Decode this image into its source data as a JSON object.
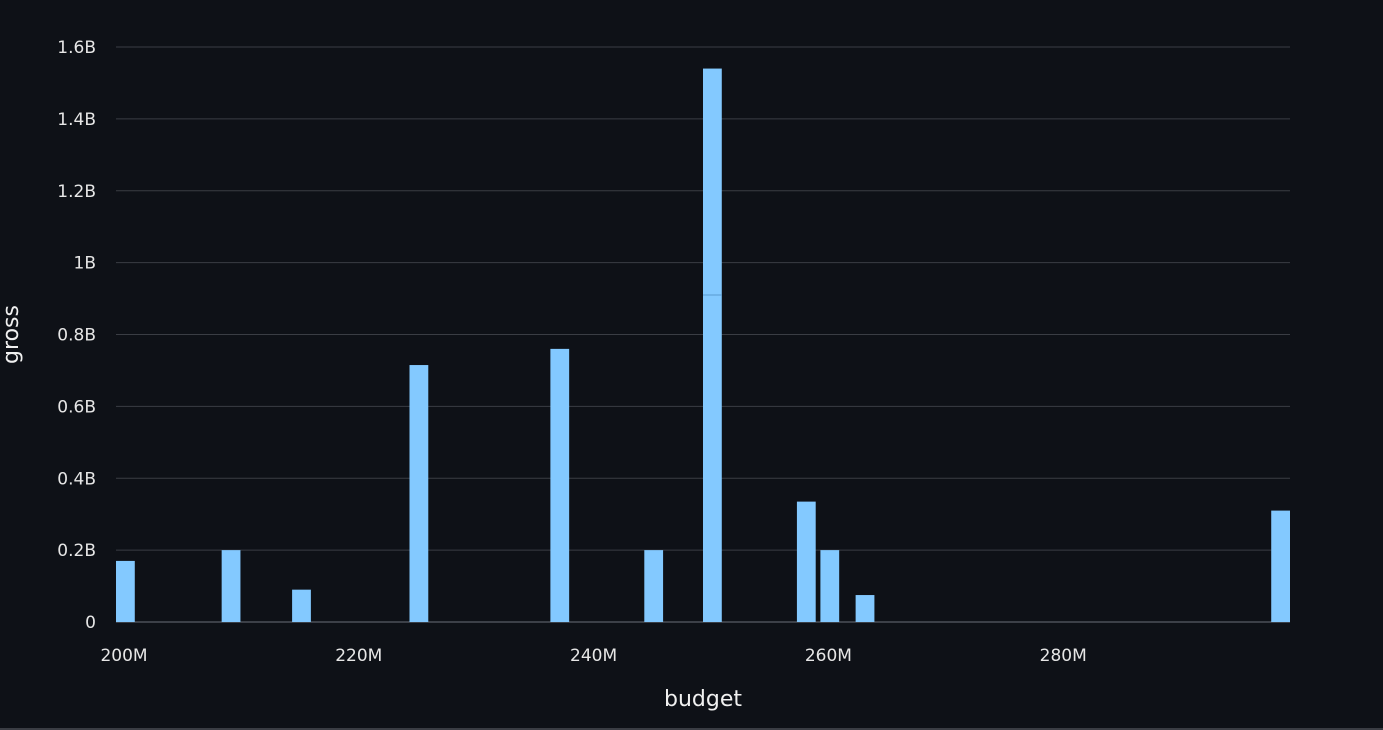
{
  "chart_data": {
    "type": "bar",
    "xlabel": "budget",
    "ylabel": "gross",
    "xlim": [
      200000000,
      300000000
    ],
    "ylim": [
      0,
      1600000000
    ],
    "x_ticks": [
      {
        "value": 200000000,
        "label": "200M"
      },
      {
        "value": 220000000,
        "label": "220M"
      },
      {
        "value": 240000000,
        "label": "240M"
      },
      {
        "value": 260000000,
        "label": "260M"
      },
      {
        "value": 280000000,
        "label": "280M"
      }
    ],
    "y_ticks": [
      {
        "value": 0,
        "label": "0"
      },
      {
        "value": 200000000,
        "label": "0.2B"
      },
      {
        "value": 400000000,
        "label": "0.4B"
      },
      {
        "value": 600000000,
        "label": "0.6B"
      },
      {
        "value": 800000000,
        "label": "0.8B"
      },
      {
        "value": 1000000000,
        "label": "1B"
      },
      {
        "value": 1200000000,
        "label": "1.2B"
      },
      {
        "value": 1400000000,
        "label": "1.4B"
      },
      {
        "value": 1600000000,
        "label": "1.6B"
      }
    ],
    "grid": true,
    "bar_width_budget": 1600000,
    "bar_color": "#83c9ff",
    "background": "#0e1117",
    "series": [
      {
        "values": [
          {
            "x": 200000000,
            "y": 170000000
          },
          {
            "x": 209000000,
            "y": 200000000
          },
          {
            "x": 215000000,
            "y": 90000000
          },
          {
            "x": 225000000,
            "y": 715000000
          },
          {
            "x": 237000000,
            "y": 760000000
          },
          {
            "x": 245000000,
            "y": 200000000
          },
          {
            "x": 250000000,
            "y": 910000000
          },
          {
            "x": 250000000,
            "y": 630000000,
            "stacked_on": 910000000
          },
          {
            "x": 258000000,
            "y": 335000000
          },
          {
            "x": 260000000,
            "y": 200000000
          },
          {
            "x": 263000000,
            "y": 75000000
          },
          {
            "x": 300000000,
            "y": 310000000
          }
        ]
      }
    ]
  }
}
